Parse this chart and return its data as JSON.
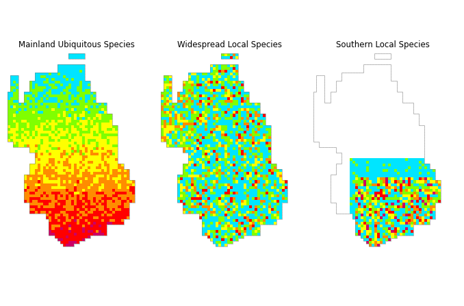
{
  "panel_titles": [
    "Mainland Ubiquitous Species",
    "Widespread Local Species",
    "Southern Local Species"
  ],
  "panel_title_fontsize": 8.5,
  "background_color": "#ffffff",
  "map_outline_color": "#808080",
  "colors": [
    "#00e5ff",
    "#80ff00",
    "#ffff00",
    "#ff8c00",
    "#ff0000",
    "#cc0066"
  ],
  "figsize": [
    6.78,
    4.47
  ],
  "dpi": 100
}
